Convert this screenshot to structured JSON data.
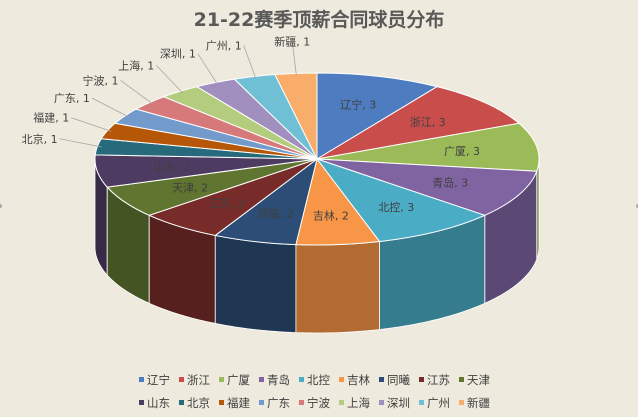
{
  "chart_data": {
    "type": "pie",
    "title": "21-22赛季顶薪合同球员分布",
    "categories": [
      "辽宁",
      "浙江",
      "广厦",
      "青岛",
      "北控",
      "吉林",
      "同曦",
      "江苏",
      "天津",
      "山东",
      "北京",
      "福建",
      "广东",
      "宁波",
      "上海",
      "深圳",
      "广州",
      "新疆"
    ],
    "values": [
      3,
      3,
      3,
      3,
      3,
      2,
      2,
      2,
      2,
      2,
      1,
      1,
      1,
      1,
      1,
      1,
      1,
      1
    ],
    "colors": [
      "#4e7cc1",
      "#c94d4a",
      "#9bbb59",
      "#8064a2",
      "#4bacc6",
      "#f79646",
      "#2c4d75",
      "#772c2a",
      "#5f7530",
      "#4d3b62",
      "#276a7c",
      "#b65708",
      "#729aca",
      "#d6797a",
      "#b4cc7d",
      "#a08fbf",
      "#6fc0d4",
      "#f9ad6b"
    ],
    "data_labels": [
      "辽宁, 3",
      "浙江, 3",
      "广厦, 3",
      "青岛, 3",
      "北控, 3",
      "吉林, 2",
      "同曦, 2",
      "江苏, 2",
      "天津, 2",
      "山东, 2",
      "北京, 1",
      "福建, 1",
      "广东, 1",
      "宁波, 1",
      "上海, 1",
      "深圳, 1",
      "广州, 1",
      "新疆, 1"
    ],
    "legend_position": "bottom",
    "style": "3d-pie"
  }
}
